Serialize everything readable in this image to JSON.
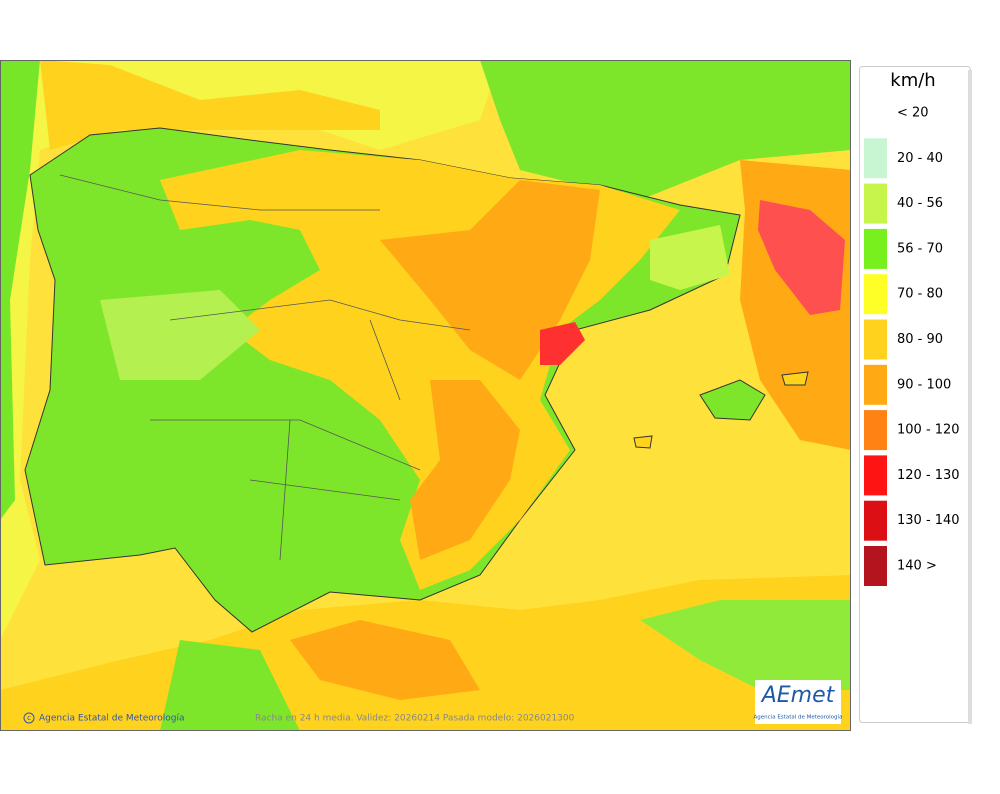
{
  "legend": {
    "unit": "km/h",
    "items": [
      {
        "label": "< 20"
      },
      {
        "label": "20 - 40",
        "color": "#c8f5d2"
      },
      {
        "label": "40 - 56",
        "color": "#c8f54b"
      },
      {
        "label": "56 - 70",
        "color": "#78f01e"
      },
      {
        "label": "70 - 80",
        "color": "#ffff28"
      },
      {
        "label": "80 - 90",
        "color": "#ffd21e"
      },
      {
        "label": "90 - 100",
        "color": "#ffaa14"
      },
      {
        "label": "100 - 120",
        "color": "#ff8214"
      },
      {
        "label": "120 - 130",
        "color": "#ff1414"
      },
      {
        "label": "130 - 140",
        "color": "#dc0f14"
      },
      {
        "label": "140 >",
        "color": "#b4141e"
      }
    ]
  },
  "credit": "Agencia Estatal de Meteorología",
  "caption": "Racha en 24 h media. Validez: 20260214 Pasada modelo: 2026021300",
  "logo": {
    "name": "AEmet",
    "subtitle": "Agencia Estatal de Meteorología"
  }
}
